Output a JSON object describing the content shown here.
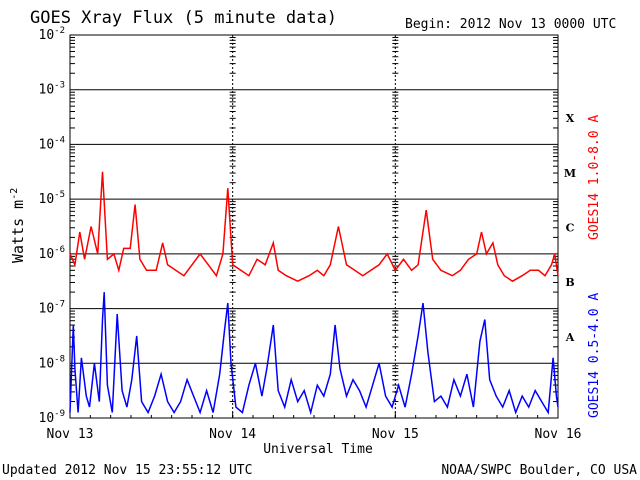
{
  "chart_data": {
    "type": "line",
    "title": "GOES Xray Flux (5 minute data)",
    "begin_label": "Begin:  2012 Nov 13 0000 UTC",
    "xlabel": "Universal Time",
    "ylabel_base": "Watts m",
    "ylabel_exp": "-2",
    "x_ticks": [
      "Nov 13",
      "Nov 14",
      "Nov 15",
      "Nov 16"
    ],
    "x_range_days": [
      0,
      3
    ],
    "y_scale": "log",
    "ylim_exponents": [
      -9,
      -2
    ],
    "y_tick_exponents": [
      "-9",
      "-8",
      "-7",
      "-6",
      "-5",
      "-4",
      "-3",
      "-2"
    ],
    "flare_classes": [
      {
        "letter": "A",
        "exp": -7.5
      },
      {
        "letter": "B",
        "exp": -6.5
      },
      {
        "letter": "C",
        "exp": -5.5
      },
      {
        "letter": "M",
        "exp": -4.5
      },
      {
        "letter": "X",
        "exp": -3.5
      }
    ],
    "series": [
      {
        "name": "GOES14 1.0-8.0 A",
        "color": "#ff0000",
        "baseline_exp": -6.3,
        "points": [
          [
            0.0,
            -6.0
          ],
          [
            0.03,
            -6.2
          ],
          [
            0.06,
            -5.6
          ],
          [
            0.09,
            -6.1
          ],
          [
            0.13,
            -5.5
          ],
          [
            0.17,
            -6.0
          ],
          [
            0.2,
            -4.5
          ],
          [
            0.23,
            -6.1
          ],
          [
            0.27,
            -6.0
          ],
          [
            0.3,
            -6.3
          ],
          [
            0.33,
            -5.9
          ],
          [
            0.37,
            -5.9
          ],
          [
            0.4,
            -5.1
          ],
          [
            0.43,
            -6.1
          ],
          [
            0.47,
            -6.3
          ],
          [
            0.53,
            -6.3
          ],
          [
            0.57,
            -5.8
          ],
          [
            0.6,
            -6.2
          ],
          [
            0.65,
            -6.3
          ],
          [
            0.7,
            -6.4
          ],
          [
            0.75,
            -6.2
          ],
          [
            0.8,
            -6.0
          ],
          [
            0.85,
            -6.2
          ],
          [
            0.9,
            -6.4
          ],
          [
            0.94,
            -6.0
          ],
          [
            0.97,
            -4.8
          ],
          [
            1.0,
            -6.2
          ],
          [
            1.05,
            -6.3
          ],
          [
            1.1,
            -6.4
          ],
          [
            1.15,
            -6.1
          ],
          [
            1.2,
            -6.2
          ],
          [
            1.25,
            -5.8
          ],
          [
            1.28,
            -6.3
          ],
          [
            1.33,
            -6.4
          ],
          [
            1.4,
            -6.5
          ],
          [
            1.47,
            -6.4
          ],
          [
            1.52,
            -6.3
          ],
          [
            1.56,
            -6.4
          ],
          [
            1.6,
            -6.2
          ],
          [
            1.65,
            -5.5
          ],
          [
            1.7,
            -6.2
          ],
          [
            1.75,
            -6.3
          ],
          [
            1.8,
            -6.4
          ],
          [
            1.85,
            -6.3
          ],
          [
            1.9,
            -6.2
          ],
          [
            1.95,
            -6.0
          ],
          [
            2.0,
            -6.3
          ],
          [
            2.05,
            -6.1
          ],
          [
            2.1,
            -6.3
          ],
          [
            2.14,
            -6.2
          ],
          [
            2.19,
            -5.2
          ],
          [
            2.23,
            -6.1
          ],
          [
            2.28,
            -6.3
          ],
          [
            2.35,
            -6.4
          ],
          [
            2.4,
            -6.3
          ],
          [
            2.45,
            -6.1
          ],
          [
            2.5,
            -6.0
          ],
          [
            2.53,
            -5.6
          ],
          [
            2.56,
            -6.0
          ],
          [
            2.6,
            -5.8
          ],
          [
            2.63,
            -6.2
          ],
          [
            2.67,
            -6.4
          ],
          [
            2.72,
            -6.5
          ],
          [
            2.78,
            -6.4
          ],
          [
            2.83,
            -6.3
          ],
          [
            2.88,
            -6.3
          ],
          [
            2.92,
            -6.4
          ],
          [
            2.96,
            -6.2
          ],
          [
            2.98,
            -6.0
          ],
          [
            3.0,
            -6.4
          ]
        ]
      },
      {
        "name": "GOES14 0.5-4.0 A",
        "color": "#0000ff",
        "baseline_exp": -8.8,
        "points": [
          [
            0.0,
            -8.9
          ],
          [
            0.02,
            -7.3
          ],
          [
            0.03,
            -8.1
          ],
          [
            0.05,
            -8.9
          ],
          [
            0.07,
            -7.9
          ],
          [
            0.1,
            -8.6
          ],
          [
            0.12,
            -8.8
          ],
          [
            0.15,
            -8.0
          ],
          [
            0.18,
            -8.7
          ],
          [
            0.2,
            -7.2
          ],
          [
            0.21,
            -6.7
          ],
          [
            0.23,
            -8.4
          ],
          [
            0.26,
            -8.9
          ],
          [
            0.29,
            -7.1
          ],
          [
            0.32,
            -8.5
          ],
          [
            0.35,
            -8.8
          ],
          [
            0.38,
            -8.3
          ],
          [
            0.41,
            -7.5
          ],
          [
            0.44,
            -8.7
          ],
          [
            0.48,
            -8.9
          ],
          [
            0.52,
            -8.6
          ],
          [
            0.56,
            -8.2
          ],
          [
            0.6,
            -8.7
          ],
          [
            0.64,
            -8.9
          ],
          [
            0.68,
            -8.7
          ],
          [
            0.72,
            -8.3
          ],
          [
            0.76,
            -8.6
          ],
          [
            0.8,
            -8.9
          ],
          [
            0.84,
            -8.5
          ],
          [
            0.88,
            -8.9
          ],
          [
            0.92,
            -8.2
          ],
          [
            0.95,
            -7.4
          ],
          [
            0.97,
            -6.9
          ],
          [
            0.99,
            -8.0
          ],
          [
            1.02,
            -8.8
          ],
          [
            1.06,
            -8.9
          ],
          [
            1.1,
            -8.4
          ],
          [
            1.14,
            -8.0
          ],
          [
            1.18,
            -8.6
          ],
          [
            1.21,
            -8.1
          ],
          [
            1.25,
            -7.3
          ],
          [
            1.28,
            -8.5
          ],
          [
            1.32,
            -8.8
          ],
          [
            1.36,
            -8.3
          ],
          [
            1.4,
            -8.7
          ],
          [
            1.44,
            -8.5
          ],
          [
            1.48,
            -8.9
          ],
          [
            1.52,
            -8.4
          ],
          [
            1.56,
            -8.6
          ],
          [
            1.6,
            -8.2
          ],
          [
            1.63,
            -7.3
          ],
          [
            1.66,
            -8.1
          ],
          [
            1.7,
            -8.6
          ],
          [
            1.74,
            -8.3
          ],
          [
            1.78,
            -8.5
          ],
          [
            1.82,
            -8.8
          ],
          [
            1.86,
            -8.4
          ],
          [
            1.9,
            -8.0
          ],
          [
            1.94,
            -8.6
          ],
          [
            1.98,
            -8.8
          ],
          [
            2.02,
            -8.4
          ],
          [
            2.06,
            -8.8
          ],
          [
            2.1,
            -8.2
          ],
          [
            2.14,
            -7.5
          ],
          [
            2.17,
            -6.9
          ],
          [
            2.2,
            -7.8
          ],
          [
            2.24,
            -8.7
          ],
          [
            2.28,
            -8.6
          ],
          [
            2.32,
            -8.8
          ],
          [
            2.36,
            -8.3
          ],
          [
            2.4,
            -8.6
          ],
          [
            2.44,
            -8.2
          ],
          [
            2.48,
            -8.8
          ],
          [
            2.52,
            -7.6
          ],
          [
            2.55,
            -7.2
          ],
          [
            2.58,
            -8.3
          ],
          [
            2.62,
            -8.6
          ],
          [
            2.66,
            -8.8
          ],
          [
            2.7,
            -8.5
          ],
          [
            2.74,
            -8.9
          ],
          [
            2.78,
            -8.6
          ],
          [
            2.82,
            -8.8
          ],
          [
            2.86,
            -8.5
          ],
          [
            2.9,
            -8.7
          ],
          [
            2.94,
            -8.9
          ],
          [
            2.97,
            -7.9
          ],
          [
            2.99,
            -8.6
          ],
          [
            3.0,
            -8.8
          ]
        ]
      }
    ]
  },
  "footer": {
    "updated": "Updated 2012 Nov 15 23:55:12 UTC",
    "source": "NOAA/SWPC Boulder, CO USA"
  }
}
